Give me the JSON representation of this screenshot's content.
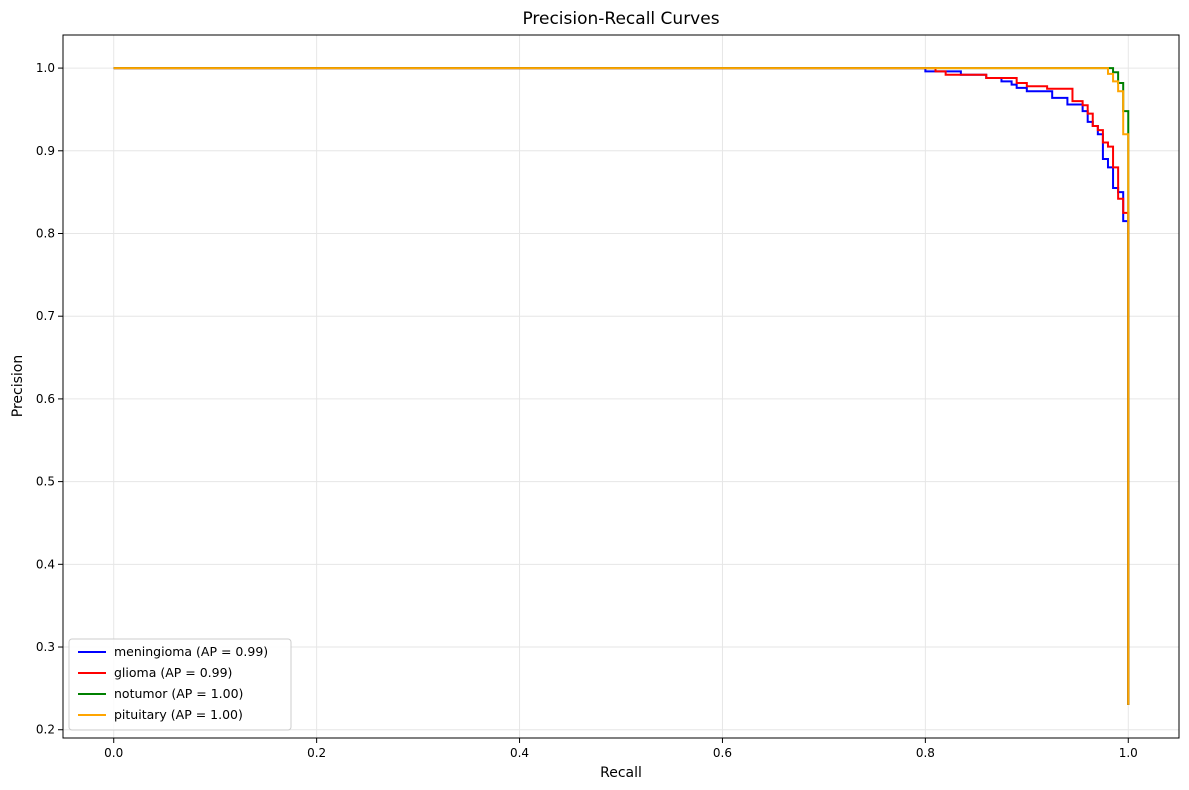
{
  "chart_data": {
    "type": "line",
    "title": "Precision-Recall Curves",
    "xlabel": "Recall",
    "ylabel": "Precision",
    "xlim": [
      -0.05,
      1.05
    ],
    "ylim": [
      0.19,
      1.04
    ],
    "xticks": [
      0.0,
      0.2,
      0.4,
      0.6,
      0.8,
      1.0
    ],
    "xtick_labels": [
      "0.0",
      "0.2",
      "0.4",
      "0.6",
      "0.8",
      "1.0"
    ],
    "yticks": [
      0.2,
      0.3,
      0.4,
      0.5,
      0.6,
      0.7,
      0.8,
      0.9,
      1.0
    ],
    "ytick_labels": [
      "0.2",
      "0.3",
      "0.4",
      "0.5",
      "0.6",
      "0.7",
      "0.8",
      "0.9",
      "1.0"
    ],
    "grid": true,
    "legend_position": "lower-left",
    "series": [
      {
        "name": "meningioma (AP = 0.99)",
        "color": "#0000ff",
        "x": [
          0.0,
          0.8,
          0.8,
          0.835,
          0.835,
          0.86,
          0.86,
          0.875,
          0.875,
          0.885,
          0.885,
          0.89,
          0.89,
          0.9,
          0.9,
          0.925,
          0.925,
          0.94,
          0.94,
          0.955,
          0.955,
          0.96,
          0.96,
          0.965,
          0.965,
          0.97,
          0.97,
          0.975,
          0.975,
          0.98,
          0.98,
          0.985,
          0.985,
          0.99,
          0.99,
          0.995,
          0.995,
          1.0,
          1.0
        ],
        "y": [
          1.0,
          1.0,
          0.996,
          0.996,
          0.992,
          0.992,
          0.988,
          0.988,
          0.984,
          0.984,
          0.98,
          0.98,
          0.976,
          0.976,
          0.972,
          0.972,
          0.964,
          0.964,
          0.956,
          0.956,
          0.948,
          0.948,
          0.935,
          0.935,
          0.93,
          0.93,
          0.92,
          0.92,
          0.89,
          0.89,
          0.88,
          0.88,
          0.855,
          0.855,
          0.85,
          0.85,
          0.815,
          0.815,
          0.23
        ]
      },
      {
        "name": "glioma (AP = 0.99)",
        "color": "#ff0000",
        "x": [
          0.0,
          0.81,
          0.81,
          0.82,
          0.82,
          0.86,
          0.86,
          0.89,
          0.89,
          0.9,
          0.9,
          0.92,
          0.92,
          0.945,
          0.945,
          0.955,
          0.955,
          0.96,
          0.96,
          0.965,
          0.965,
          0.97,
          0.97,
          0.975,
          0.975,
          0.98,
          0.98,
          0.985,
          0.985,
          0.99,
          0.99,
          0.995,
          0.995,
          1.0,
          1.0
        ],
        "y": [
          1.0,
          1.0,
          0.996,
          0.996,
          0.992,
          0.992,
          0.988,
          0.988,
          0.982,
          0.982,
          0.978,
          0.978,
          0.975,
          0.975,
          0.96,
          0.96,
          0.955,
          0.955,
          0.945,
          0.945,
          0.93,
          0.93,
          0.925,
          0.925,
          0.91,
          0.91,
          0.905,
          0.905,
          0.88,
          0.88,
          0.842,
          0.842,
          0.825,
          0.825,
          0.23
        ]
      },
      {
        "name": "notumor (AP = 1.00)",
        "color": "#008000",
        "x": [
          0.0,
          0.985,
          0.985,
          0.99,
          0.99,
          0.995,
          0.995,
          1.0,
          1.0
        ],
        "y": [
          1.0,
          1.0,
          0.995,
          0.995,
          0.982,
          0.982,
          0.948,
          0.948,
          0.23
        ]
      },
      {
        "name": "pituitary (AP = 1.00)",
        "color": "#ffa500",
        "x": [
          0.0,
          0.98,
          0.98,
          0.985,
          0.985,
          0.99,
          0.99,
          0.995,
          0.995,
          1.0,
          1.0
        ],
        "y": [
          1.0,
          1.0,
          0.993,
          0.993,
          0.984,
          0.984,
          0.972,
          0.972,
          0.92,
          0.92,
          0.23
        ]
      }
    ]
  }
}
